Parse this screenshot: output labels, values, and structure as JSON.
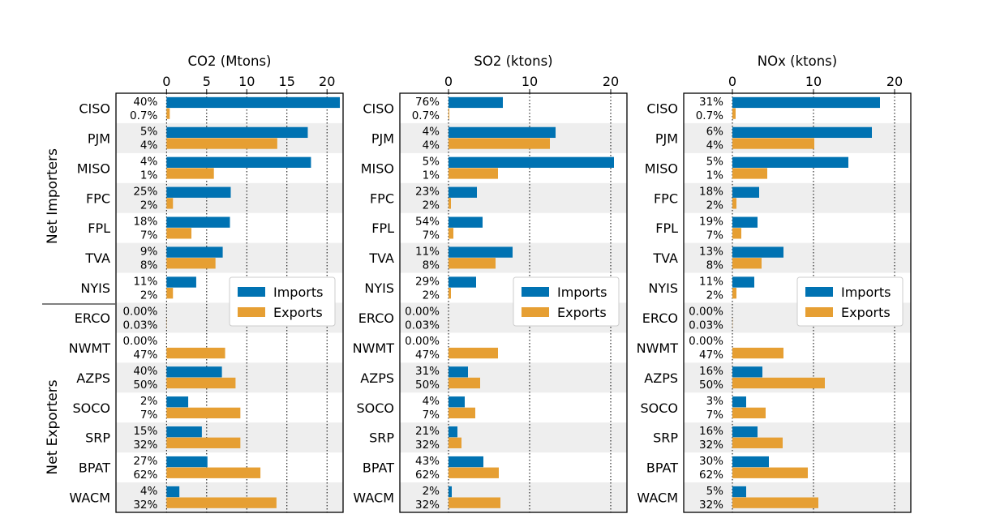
{
  "colors": {
    "imports": "#0072b2",
    "exports": "#e69f33",
    "band": "#eeeeee",
    "grid": "#000000"
  },
  "group_labels": {
    "importers": "Net Importers",
    "exporters": "Net Exporters"
  },
  "legend": {
    "imports": "Imports",
    "exports": "Exports"
  },
  "chart_data": [
    {
      "type": "bar",
      "orientation": "horizontal",
      "title": "CO2 (Mtons)",
      "xlim": [
        -6.3,
        22
      ],
      "xticks": [
        0,
        5,
        10,
        15,
        20
      ],
      "grid": "x dotted",
      "legend_position": "center-right",
      "categories": [
        "CISO",
        "PJM",
        "MISO",
        "FPC",
        "FPL",
        "TVA",
        "NYIS",
        "ERCO",
        "NWMT",
        "AZPS",
        "SOCO",
        "SRP",
        "BPAT",
        "WACM"
      ],
      "series": [
        {
          "name": "Imports",
          "values": [
            21.6,
            17.6,
            18.0,
            8.0,
            7.9,
            7.0,
            3.7,
            0.0,
            0.0,
            6.9,
            2.7,
            4.4,
            5.1,
            1.6
          ],
          "pct_labels": [
            "40%",
            "5%",
            "4%",
            "25%",
            "18%",
            "9%",
            "11%",
            "0.00%",
            "0.00%",
            "40%",
            "2%",
            "15%",
            "27%",
            "4%"
          ]
        },
        {
          "name": "Exports",
          "values": [
            0.4,
            13.8,
            5.9,
            0.8,
            3.1,
            6.1,
            0.8,
            0.02,
            7.3,
            8.6,
            9.2,
            9.2,
            11.7,
            13.7
          ],
          "pct_labels": [
            "0.7%",
            "4%",
            "1%",
            "2%",
            "7%",
            "8%",
            "2%",
            "0.03%",
            "47%",
            "50%",
            "7%",
            "32%",
            "62%",
            "32%"
          ]
        }
      ]
    },
    {
      "type": "bar",
      "orientation": "horizontal",
      "title": "SO2 (ktons)",
      "xlim": [
        -6.0,
        22
      ],
      "xticks": [
        0,
        10,
        20
      ],
      "grid": "x dotted",
      "legend_position": "center-right",
      "categories": [
        "CISO",
        "PJM",
        "MISO",
        "FPC",
        "FPL",
        "TVA",
        "NYIS",
        "ERCO",
        "NWMT",
        "AZPS",
        "SOCO",
        "SRP",
        "BPAT",
        "WACM"
      ],
      "series": [
        {
          "name": "Imports",
          "values": [
            6.7,
            13.2,
            20.4,
            3.5,
            4.2,
            7.9,
            3.4,
            0.0,
            0.0,
            2.4,
            2.0,
            1.1,
            4.3,
            0.4
          ],
          "pct_labels": [
            "76%",
            "4%",
            "5%",
            "23%",
            "54%",
            "11%",
            "29%",
            "0.00%",
            "0.00%",
            "31%",
            "4%",
            "21%",
            "43%",
            "2%"
          ]
        },
        {
          "name": "Exports",
          "values": [
            0.1,
            12.5,
            6.1,
            0.3,
            0.6,
            5.8,
            0.3,
            0.01,
            6.1,
            3.9,
            3.3,
            1.6,
            6.2,
            6.4
          ],
          "pct_labels": [
            "0.7%",
            "4%",
            "1%",
            "2%",
            "7%",
            "8%",
            "2%",
            "0.03%",
            "47%",
            "50%",
            "7%",
            "32%",
            "62%",
            "32%"
          ]
        }
      ]
    },
    {
      "type": "bar",
      "orientation": "horizontal",
      "title": "NOx (ktons)",
      "xlim": [
        -6.0,
        22
      ],
      "xticks": [
        0,
        10,
        20
      ],
      "grid": "x dotted",
      "legend_position": "center-right",
      "categories": [
        "CISO",
        "PJM",
        "MISO",
        "FPC",
        "FPL",
        "TVA",
        "NYIS",
        "ERCO",
        "NWMT",
        "AZPS",
        "SOCO",
        "SRP",
        "BPAT",
        "WACM"
      ],
      "series": [
        {
          "name": "Imports",
          "values": [
            18.2,
            17.2,
            14.3,
            3.3,
            3.1,
            6.3,
            2.7,
            0.0,
            0.0,
            3.7,
            1.7,
            3.1,
            4.5,
            1.7
          ],
          "pct_labels": [
            "31%",
            "6%",
            "5%",
            "18%",
            "19%",
            "13%",
            "11%",
            "0.00%",
            "0.00%",
            "16%",
            "3%",
            "16%",
            "30%",
            "5%"
          ]
        },
        {
          "name": "Exports",
          "values": [
            0.4,
            10.1,
            4.3,
            0.5,
            1.1,
            3.6,
            0.5,
            0.02,
            6.3,
            11.4,
            4.1,
            6.2,
            9.3,
            10.6
          ],
          "pct_labels": [
            "0.7%",
            "4%",
            "1%",
            "2%",
            "7%",
            "8%",
            "2%",
            "0.03%",
            "47%",
            "50%",
            "7%",
            "32%",
            "62%",
            "32%"
          ]
        }
      ]
    }
  ]
}
